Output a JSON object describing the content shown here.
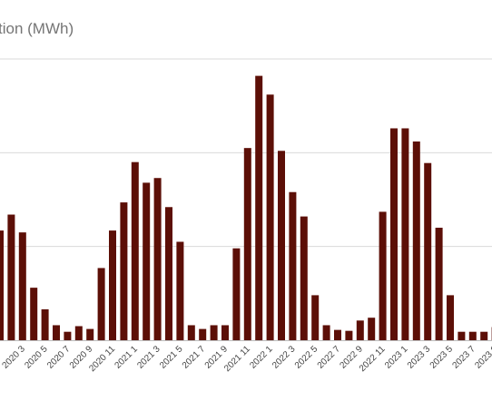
{
  "chart_data": {
    "type": "bar",
    "title": "tion (MWh)",
    "xlabel": "",
    "ylabel": "",
    "ylim": [
      0,
      300
    ],
    "grid": true,
    "colors": {
      "bar": "#5c0f07",
      "grid": "#d9d9d9",
      "axis": "#bdbdbd"
    },
    "categories": [
      "",
      "",
      "2020 3",
      "",
      "2020 5",
      "",
      "2020 7",
      "",
      "2020 9",
      "",
      "2020 11",
      "",
      "2021 1",
      "",
      "2021 3",
      "",
      "2021 5",
      "",
      "2021 7",
      "",
      "2021 9",
      "",
      "2021 11",
      "",
      "2022 1",
      "",
      "2022 3",
      "",
      "2022 5",
      "",
      "2022 7",
      "",
      "2022 9",
      "",
      "2022 11",
      "",
      "2023 1",
      "",
      "2023 3",
      "",
      "2023 5",
      "",
      "2023 7",
      "",
      "2023 9"
    ],
    "values": [
      117,
      134,
      115,
      56,
      33,
      16,
      9,
      15,
      12,
      77,
      117,
      147,
      190,
      168,
      173,
      142,
      105,
      16,
      12,
      16,
      16,
      98,
      205,
      282,
      262,
      202,
      158,
      132,
      48,
      16,
      11,
      10,
      21,
      24,
      137,
      226,
      226,
      212,
      189,
      120,
      48,
      9,
      9,
      9,
      14
    ]
  }
}
